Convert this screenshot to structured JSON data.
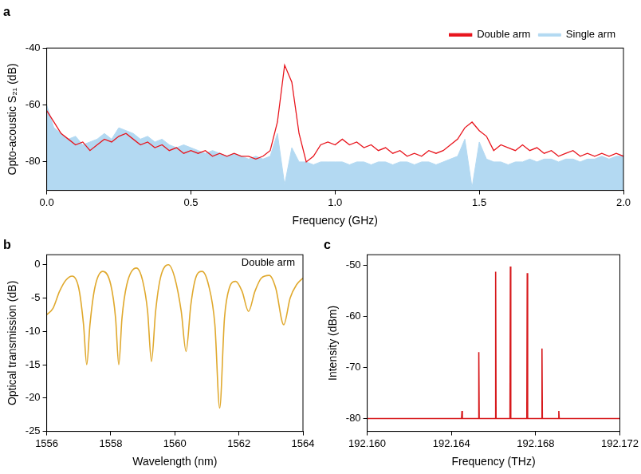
{
  "chart_data": [
    {
      "type": "line",
      "title": "a",
      "x_label": "Frequency (GHz)",
      "y_label": "Opto-acoustic S₂₁ (dB)",
      "x": [
        0,
        0.025,
        0.05,
        0.075,
        0.1,
        0.125,
        0.15,
        0.175,
        0.2,
        0.225,
        0.25,
        0.275,
        0.3,
        0.325,
        0.35,
        0.375,
        0.4,
        0.425,
        0.45,
        0.475,
        0.5,
        0.525,
        0.55,
        0.575,
        0.6,
        0.625,
        0.65,
        0.675,
        0.7,
        0.725,
        0.75,
        0.775,
        0.8,
        0.825,
        0.85,
        0.875,
        0.9,
        0.925,
        0.95,
        0.975,
        1.0,
        1.025,
        1.05,
        1.075,
        1.1,
        1.125,
        1.15,
        1.175,
        1.2,
        1.225,
        1.25,
        1.275,
        1.3,
        1.325,
        1.35,
        1.375,
        1.4,
        1.425,
        1.45,
        1.475,
        1.5,
        1.525,
        1.55,
        1.575,
        1.6,
        1.625,
        1.65,
        1.675,
        1.7,
        1.725,
        1.75,
        1.775,
        1.8,
        1.825,
        1.85,
        1.875,
        1.9,
        1.925,
        1.95,
        1.975,
        2.0
      ],
      "series": [
        {
          "name": "Double arm",
          "color": "#e8141c",
          "type": "line",
          "values": [
            -62,
            -66,
            -70,
            -72,
            -74,
            -73,
            -76,
            -74,
            -72,
            -73,
            -71,
            -70,
            -72,
            -74,
            -73,
            -75,
            -74,
            -76,
            -75,
            -77,
            -76,
            -77,
            -76,
            -78,
            -77,
            -78,
            -77,
            -78,
            -78,
            -79,
            -78,
            -76,
            -66,
            -46,
            -52,
            -70,
            -80,
            -78,
            -74,
            -73,
            -74,
            -72,
            -74,
            -73,
            -75,
            -74,
            -76,
            -75,
            -77,
            -76,
            -78,
            -77,
            -78,
            -76,
            -77,
            -76,
            -74,
            -72,
            -68,
            -66,
            -69,
            -71,
            -76,
            -74,
            -75,
            -76,
            -74,
            -76,
            -75,
            -77,
            -76,
            -78,
            -77,
            -76,
            -78,
            -77,
            -78,
            -77,
            -78,
            -77,
            -78
          ]
        },
        {
          "name": "Single arm",
          "color": "#b3d9f2",
          "type": "area",
          "values": [
            -60,
            -68,
            -70,
            -72,
            -71,
            -74,
            -73,
            -72,
            -70,
            -72,
            -68,
            -69,
            -70,
            -72,
            -71,
            -73,
            -72,
            -74,
            -75,
            -74,
            -75,
            -76,
            -77,
            -76,
            -77,
            -78,
            -77,
            -78,
            -79,
            -78,
            -79,
            -78,
            -70,
            -88,
            -75,
            -80,
            -80,
            -81,
            -80,
            -80,
            -80,
            -80,
            -81,
            -80,
            -80,
            -81,
            -80,
            -80,
            -81,
            -80,
            -80,
            -81,
            -80,
            -80,
            -81,
            -80,
            -79,
            -78,
            -72,
            -89,
            -73,
            -79,
            -80,
            -80,
            -81,
            -80,
            -80,
            -79,
            -80,
            -79,
            -79,
            -80,
            -79,
            -79,
            -80,
            -79,
            -79,
            -78,
            -79,
            -78,
            -78
          ]
        }
      ],
      "xlim": [
        0,
        2
      ],
      "xticks": [
        {
          "value": 0,
          "label": "0.0"
        },
        0.5,
        {
          "value": 1,
          "label": "1.0"
        },
        1.5,
        {
          "value": 2,
          "label": "2.0"
        }
      ],
      "ylim": [
        -90,
        -40
      ],
      "yticks": [
        -80,
        -60,
        -40
      ],
      "grid": false,
      "legend": "upper right"
    },
    {
      "type": "line",
      "title": "b",
      "x_label": "Wavelength (nm)",
      "y_label": "Optical transmission (dB)",
      "annotation": "Double arm",
      "color": "#e0a92e",
      "x": [
        1556.0,
        1556.2,
        1556.4,
        1556.6,
        1556.8,
        1557.0,
        1557.15,
        1557.25,
        1557.35,
        1557.5,
        1557.75,
        1558.0,
        1558.15,
        1558.25,
        1558.35,
        1558.5,
        1558.8,
        1559.0,
        1559.15,
        1559.27,
        1559.4,
        1559.55,
        1559.8,
        1560.0,
        1560.2,
        1560.35,
        1560.5,
        1560.65,
        1560.85,
        1561.05,
        1561.25,
        1561.4,
        1561.55,
        1561.7,
        1561.9,
        1562.1,
        1562.3,
        1562.5,
        1562.7,
        1562.95,
        1563.15,
        1563.4,
        1563.6,
        1563.8,
        1564.0
      ],
      "values": [
        -7.5,
        -6.5,
        -4,
        -2.3,
        -1.7,
        -3.5,
        -9,
        -15,
        -9,
        -3.5,
        -1.0,
        -3,
        -8,
        -15,
        -8,
        -3,
        -0.5,
        -2.5,
        -7,
        -14.5,
        -7,
        -2,
        0,
        -2,
        -7,
        -13,
        -6,
        -2,
        -1,
        -3,
        -9,
        -21.5,
        -8,
        -3.5,
        -2.5,
        -4,
        -7,
        -4,
        -2,
        -1.6,
        -3.5,
        -9,
        -5,
        -3,
        -2
      ],
      "xlim": [
        1556,
        1564
      ],
      "xticks": [
        1556,
        1558,
        1560,
        1562,
        1564
      ],
      "ylim": [
        -25,
        1.5
      ],
      "yticks": [
        -25,
        -20,
        -15,
        -10,
        -5,
        0
      ],
      "grid": false
    },
    {
      "type": "line",
      "title": "c",
      "x_label": "Frequency (THz)",
      "y_label": "Intensity (dBm)",
      "color": "#d7191c",
      "x": [
        192.16,
        192.16448,
        192.1645,
        192.16452,
        192.16528,
        192.1653,
        192.16532,
        192.16608,
        192.1661,
        192.16612,
        192.16678,
        192.1668,
        192.16682,
        192.16758,
        192.1676,
        192.16762,
        192.16828,
        192.1683,
        192.16832,
        192.16908,
        192.1691,
        192.16912,
        192.172
      ],
      "values": [
        -80,
        -80,
        -78.5,
        -80,
        -80,
        -67,
        -80,
        -80,
        -51.3,
        -80,
        -80,
        -50.3,
        -80,
        -80,
        -51.6,
        -80,
        -80,
        -66.3,
        -80,
        -80,
        -78.5,
        -80,
        -80
      ],
      "xlim": [
        192.16,
        192.172
      ],
      "xticks": [
        {
          "value": 192.16,
          "label": "192.160"
        },
        192.164,
        192.168,
        192.172
      ],
      "ylim": [
        -82.5,
        -48
      ],
      "yticks": [
        -80,
        -70,
        -60,
        -50
      ],
      "grid": false
    }
  ]
}
